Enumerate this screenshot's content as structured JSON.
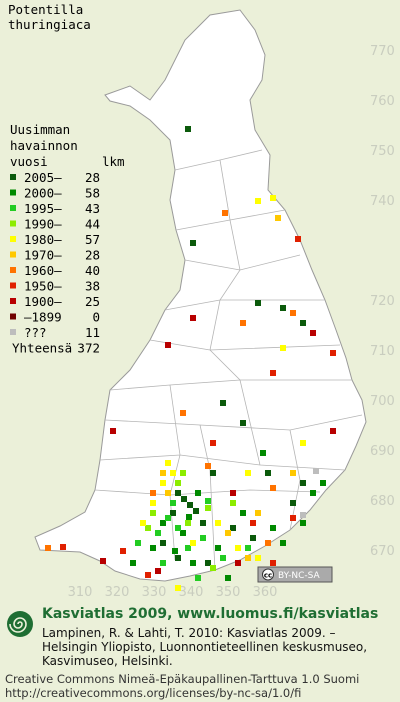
{
  "title": [
    "Potentilla",
    "thuringiaca"
  ],
  "legend": {
    "header": [
      "Uusimman",
      "havainnon",
      "vuosi"
    ],
    "count_header": "lkm",
    "items": [
      {
        "label": "2005–",
        "count": 28,
        "color": "#0b5a0b"
      },
      {
        "label": "2000–",
        "count": 58,
        "color": "#008a00"
      },
      {
        "label": "1995–",
        "count": 43,
        "color": "#22cc22"
      },
      {
        "label": "1990–",
        "count": 44,
        "color": "#8cec00"
      },
      {
        "label": "1980–",
        "count": 57,
        "color": "#ffff00"
      },
      {
        "label": "1970–",
        "count": 28,
        "color": "#ffc800"
      },
      {
        "label": "1960–",
        "count": 40,
        "color": "#ff7300"
      },
      {
        "label": "1950–",
        "count": 38,
        "color": "#e02000"
      },
      {
        "label": "1900–",
        "count": 25,
        "color": "#b80000"
      },
      {
        "label": "–1899",
        "count": 0,
        "color": "#700000"
      },
      {
        "label": "???",
        "count": 11,
        "color": "#bdbdbd"
      }
    ],
    "total_label": "Yhteensä",
    "total": 372
  },
  "map": {
    "northing_labels": [
      770,
      760,
      750,
      740,
      720,
      710,
      700,
      690,
      680,
      670
    ],
    "easting_labels": [
      310,
      320,
      330,
      340,
      350,
      360
    ],
    "badge_icon": "cc",
    "badge_text": "BY-NC-SA"
  },
  "footer": {
    "title": "Kasviatlas 2009, www.luomus.fi/kasviatlas",
    "citation": [
      "Lampinen, R. & Lahti, T. 2010: Kasviatlas 2009. –",
      "Helsingin Yliopisto, Luonnontieteellinen keskusmuseo,",
      "Kasvimuseo, Helsinki."
    ],
    "license": [
      "Creative Commons Nimeä-Epäkaupallinen-Tarttuva 1.0 Suomi",
      "http://creativecommons.org/licenses/by-nc-sa/1.0/fi"
    ]
  }
}
